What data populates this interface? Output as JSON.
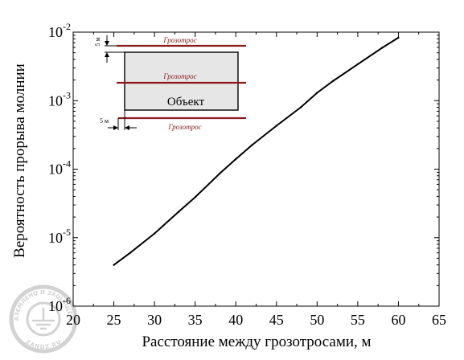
{
  "chart_data": {
    "type": "line",
    "xlabel": "Расстояние между грозотросами,  м",
    "ylabel": "Вероятность прорыва молнии",
    "xlim": [
      20,
      65
    ],
    "ylim": [
      1e-06,
      0.01
    ],
    "yscale": "log",
    "grid": false,
    "x_ticks": [
      "20",
      "25",
      "30",
      "35",
      "40",
      "45",
      "50",
      "55",
      "60",
      "65"
    ],
    "y_ticks": [
      {
        "base": "10",
        "exp": "-6"
      },
      {
        "base": "10",
        "exp": "-5"
      },
      {
        "base": "10",
        "exp": "-4"
      },
      {
        "base": "10",
        "exp": "-3"
      },
      {
        "base": "10",
        "exp": "-2"
      }
    ],
    "series": [
      {
        "x": [
          25,
          27,
          30,
          33,
          35,
          38,
          40,
          42,
          45,
          48,
          50,
          52,
          55,
          58,
          60
        ],
        "y": [
          4e-06,
          6e-06,
          1.15e-05,
          2.4e-05,
          3.9e-05,
          8.6e-05,
          0.00014,
          0.000225,
          0.00043,
          0.0008,
          0.0013,
          0.00195,
          0.0034,
          0.0059,
          0.0083
        ],
        "color": "#000000"
      }
    ]
  },
  "inset": {
    "cable_label": "Грозотрос",
    "object_label": "Объект",
    "dim_label_vertical": "5 м",
    "dim_label_horizontal": "5 м",
    "cable_color": "#8b1a1a",
    "object_fill": "#e6e6e6"
  },
  "watermark": {
    "text_top": "ЗАЗЕМЛЕНО И ЗАЩИЩЕНО",
    "text_bottom": "ZANDZ.RU",
    "color": "#d2d2d2"
  }
}
